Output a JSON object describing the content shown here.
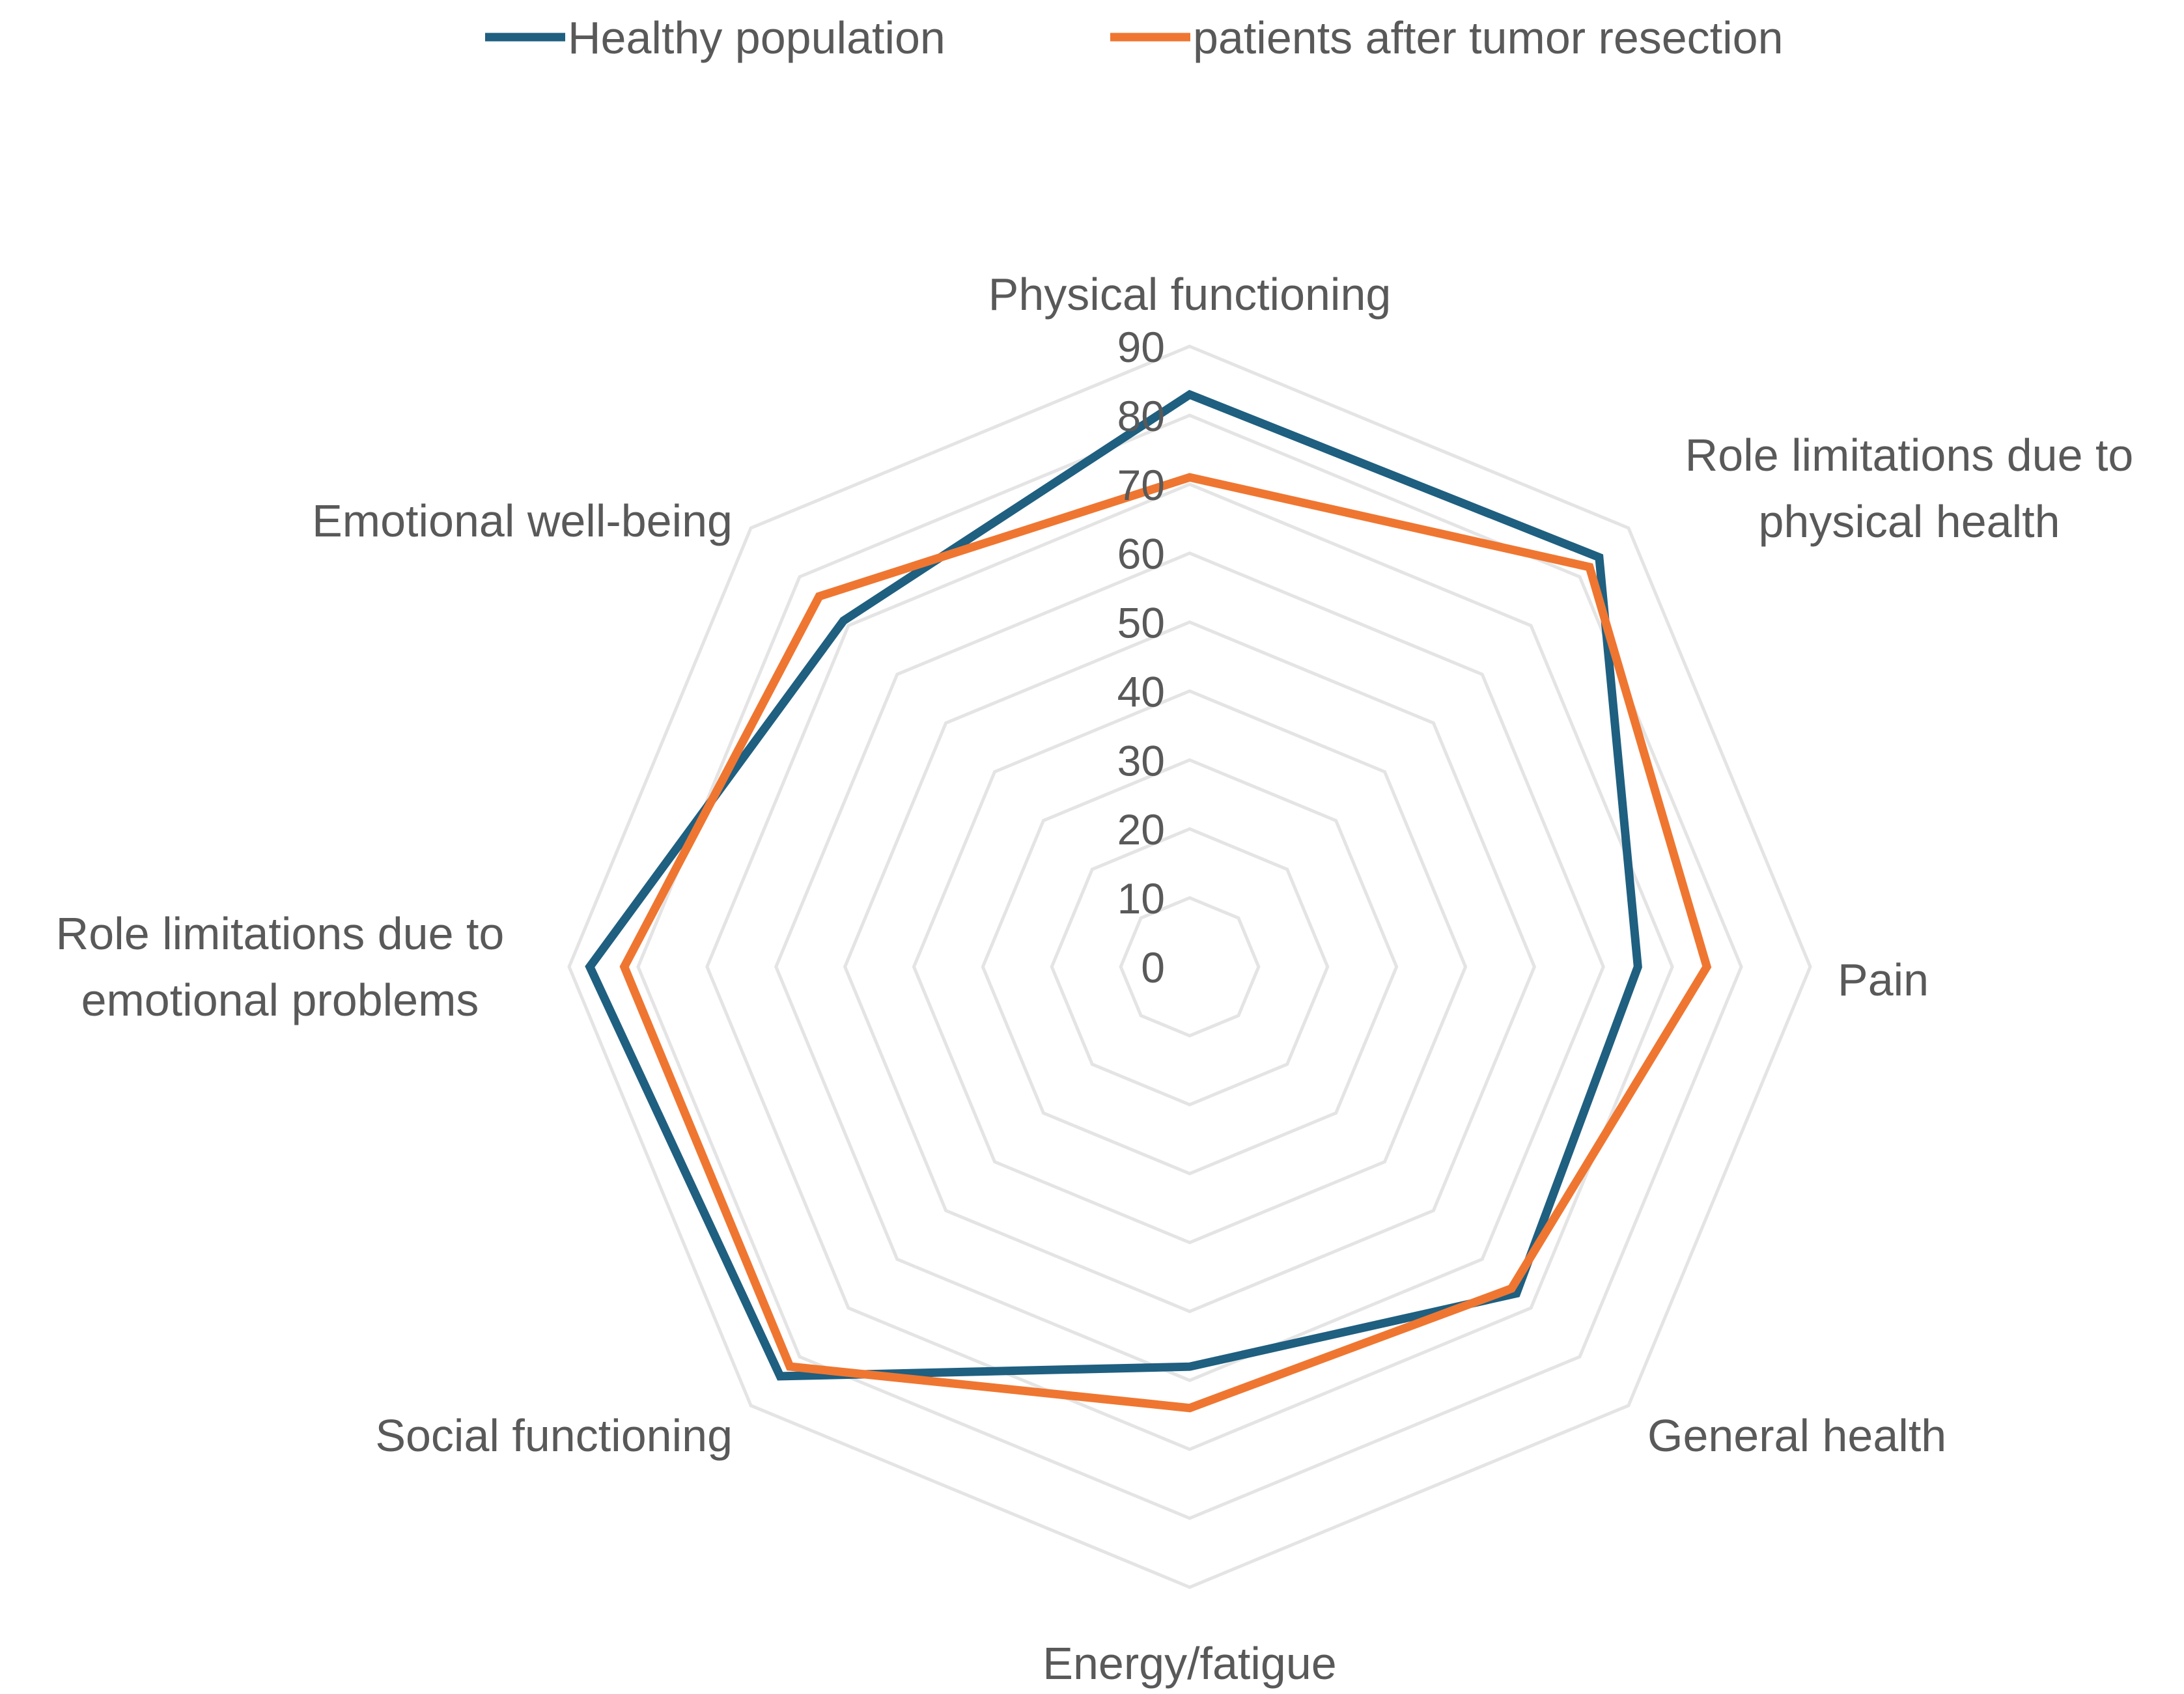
{
  "chart_data": {
    "type": "radar",
    "title": "",
    "categories": [
      [
        "Physical functioning"
      ],
      [
        "Role limitations due to",
        "physical health"
      ],
      [
        "Pain"
      ],
      [
        "General health"
      ],
      [
        "Energy/fatigue"
      ],
      [
        "Social functioning"
      ],
      [
        "Role limitations due to",
        "emotional problems"
      ],
      [
        "Emotional well-being"
      ]
    ],
    "r_ticks": [
      0,
      10,
      20,
      30,
      40,
      50,
      60,
      70,
      80,
      90
    ],
    "r_range": [
      0,
      90
    ],
    "grid": true,
    "legend_position": "top",
    "series": [
      {
        "name": "Healthy population",
        "color": "#1f5f80",
        "values": [
          83,
          84,
          65,
          67,
          58,
          84,
          87,
          71
        ]
      },
      {
        "name": "patients after tumor resection",
        "color": "#ef7631",
        "values": [
          71,
          82,
          75,
          66,
          64,
          82,
          82,
          76
        ]
      }
    ]
  }
}
